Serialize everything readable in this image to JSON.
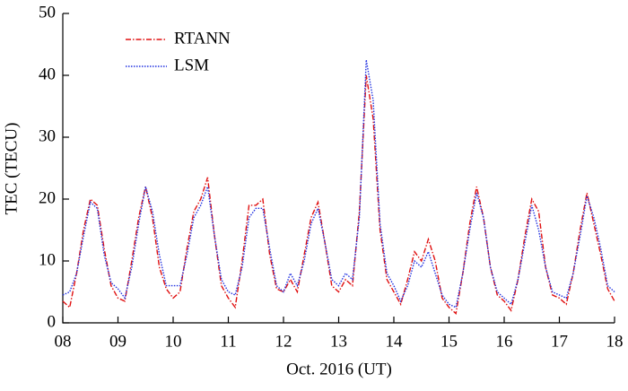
{
  "chart_data": {
    "type": "line",
    "xlabel": "Oct. 2016 (UT)",
    "ylabel": "TEC (TECU)",
    "x": [
      8,
      8.125,
      8.25,
      8.375,
      8.5,
      8.625,
      8.75,
      8.875,
      9,
      9.125,
      9.25,
      9.375,
      9.5,
      9.625,
      9.75,
      9.875,
      10,
      10.125,
      10.25,
      10.375,
      10.5,
      10.625,
      10.75,
      10.875,
      11,
      11.125,
      11.25,
      11.375,
      11.5,
      11.625,
      11.75,
      11.875,
      12,
      12.125,
      12.25,
      12.375,
      12.5,
      12.625,
      12.75,
      12.875,
      13,
      13.125,
      13.25,
      13.375,
      13.5,
      13.625,
      13.75,
      13.875,
      14,
      14.125,
      14.25,
      14.375,
      14.5,
      14.625,
      14.75,
      14.875,
      15,
      15.125,
      15.25,
      15.375,
      15.5,
      15.625,
      15.75,
      15.875,
      16,
      16.125,
      16.25,
      16.375,
      16.5,
      16.625,
      16.75,
      16.875,
      17,
      17.125,
      17.25,
      17.375,
      17.5,
      17.625,
      17.75,
      17.875,
      18
    ],
    "series": [
      {
        "name": "RTANN",
        "color": "#e01010",
        "linestyle": "dashdot",
        "values": [
          3.5,
          2.5,
          8,
          15,
          20,
          19,
          12,
          6,
          4,
          3.5,
          10,
          17,
          22,
          17,
          9,
          5.5,
          4,
          5,
          12,
          18,
          20,
          23.5,
          14,
          6,
          4,
          2.5,
          10,
          19,
          19,
          20,
          11,
          5.5,
          5,
          7,
          5,
          11,
          17,
          19.5,
          13,
          6,
          5,
          7,
          6,
          18,
          40,
          33,
          15,
          7,
          5,
          3,
          7,
          11.5,
          10,
          13.5,
          10,
          4,
          2.5,
          1.5,
          8,
          16,
          22,
          17,
          9,
          4.5,
          3.5,
          2,
          7,
          14,
          20,
          18,
          9,
          4.5,
          4,
          3,
          8,
          15,
          21,
          16,
          11,
          5.5,
          3.5
        ]
      },
      {
        "name": "LSM",
        "color": "#2030e0",
        "linestyle": "dotted",
        "values": [
          4.5,
          5,
          8,
          14,
          19.5,
          18.5,
          11,
          6.5,
          5.5,
          4,
          9,
          16,
          22,
          18,
          11,
          6,
          6,
          6,
          11,
          17,
          19,
          22,
          14,
          7,
          5,
          4.5,
          9,
          17,
          18.5,
          18.5,
          12,
          6,
          5,
          8,
          6,
          10,
          16,
          18.5,
          13,
          7,
          6,
          8,
          7,
          17,
          42.5,
          36,
          16,
          8,
          6,
          3.5,
          6,
          10,
          9,
          11.5,
          8,
          4.5,
          3,
          2.5,
          8,
          15,
          21,
          17,
          9,
          5,
          4,
          3,
          7,
          13,
          19,
          15,
          9,
          5,
          4.5,
          4,
          8,
          14,
          20.5,
          17,
          12,
          6,
          5
        ]
      }
    ],
    "xlim": [
      8,
      18
    ],
    "xticks": [
      {
        "value": 8,
        "label": "08"
      },
      {
        "value": 9,
        "label": "09"
      },
      10,
      11,
      12,
      13,
      14,
      15,
      16,
      17,
      18
    ],
    "ylim": [
      0,
      50
    ],
    "yticks": [
      0,
      10,
      20,
      30,
      40,
      50
    ],
    "legend": "upper left"
  }
}
